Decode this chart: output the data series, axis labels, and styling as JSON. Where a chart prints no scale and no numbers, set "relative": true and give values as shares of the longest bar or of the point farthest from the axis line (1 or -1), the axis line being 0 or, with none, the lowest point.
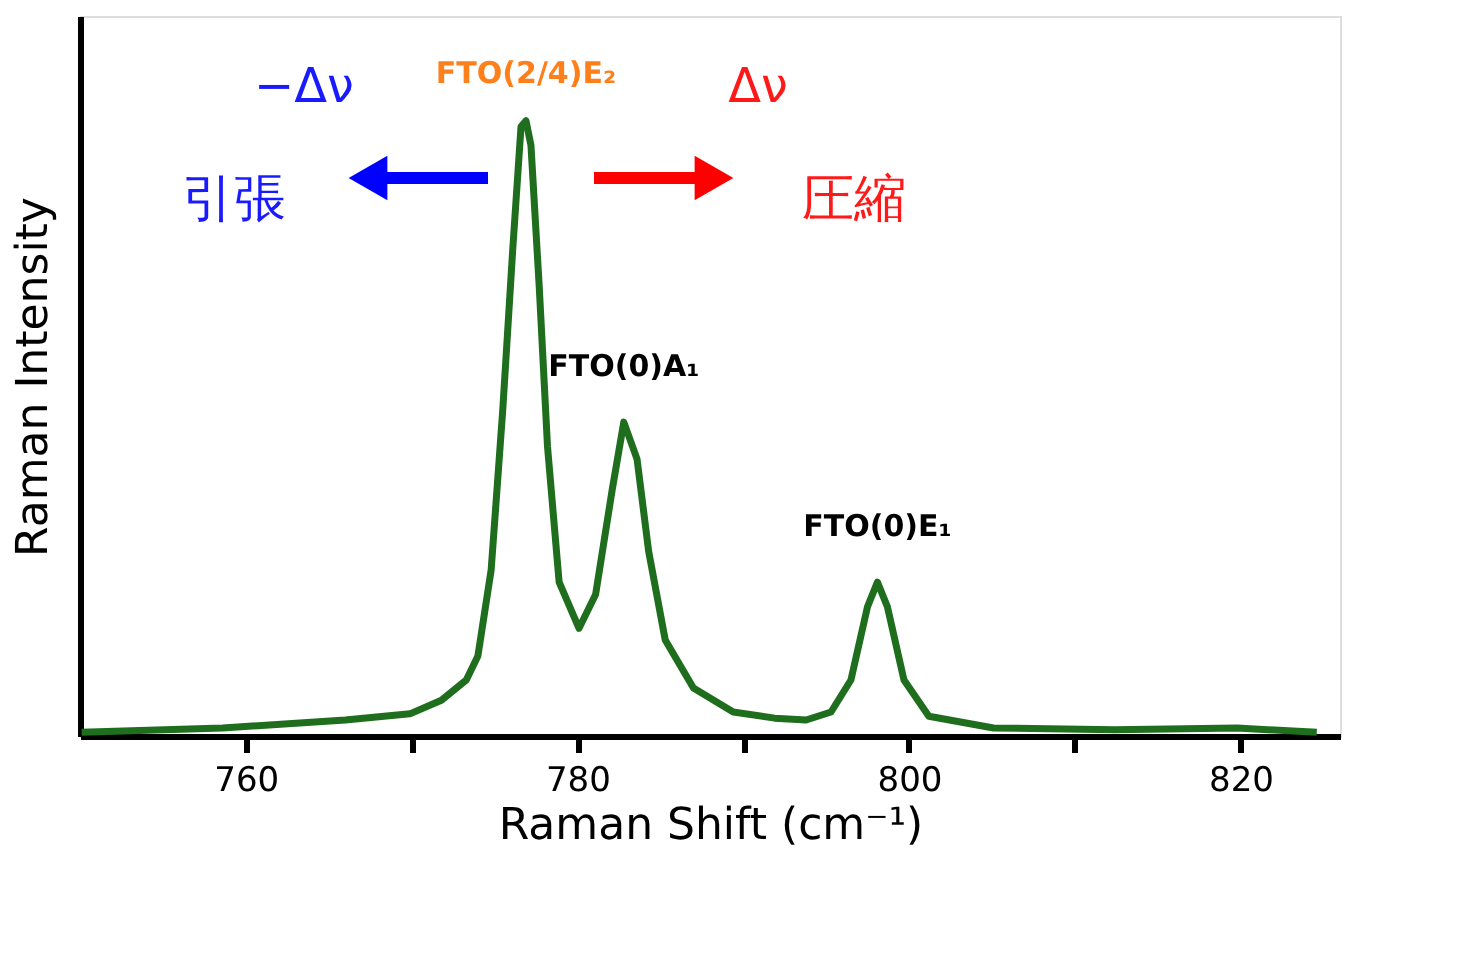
{
  "chart_data": {
    "type": "line",
    "relative": true,
    "xlabel": "Raman Shift (cm⁻¹)",
    "ylabel": "Raman Intensity",
    "xlim": [
      750,
      826
    ],
    "xticks": [
      760,
      {
        "value": 770,
        "label": null
      },
      780,
      {
        "value": 790,
        "label": null
      },
      800,
      {
        "value": 810,
        "label": null
      },
      820
    ],
    "grid": false,
    "marker": "none",
    "line_style": "solid",
    "x": [
      750.1,
      758.6,
      766.0,
      769.9,
      771.8,
      773.3,
      774.0,
      774.8,
      775.5,
      776.1,
      776.6,
      776.9,
      777.2,
      777.7,
      778.2,
      778.9,
      780.1,
      781.1,
      782.1,
      782.8,
      783.6,
      784.3,
      785.3,
      787.0,
      789.4,
      791.9,
      793.8,
      795.3,
      796.5,
      797.5,
      798.1,
      798.7,
      799.7,
      801.2,
      805.1,
      812.4,
      819.8,
      824.6
    ],
    "series": [
      {
        "color": "#1e6e1e",
        "values": [
          0.006,
          0.013,
          0.026,
          0.036,
          0.058,
          0.091,
          0.13,
          0.27,
          0.53,
          0.79,
          0.99,
          1.0,
          0.96,
          0.73,
          0.47,
          0.25,
          0.175,
          0.23,
          0.4,
          0.51,
          0.45,
          0.3,
          0.156,
          0.078,
          0.039,
          0.029,
          0.026,
          0.039,
          0.091,
          0.21,
          0.25,
          0.21,
          0.091,
          0.032,
          0.013,
          0.01,
          0.013,
          0.006
        ]
      }
    ],
    "annotations": [
      "−Δν",
      {
        "text": "FTO(2/4)E₂",
        "x": 776.9,
        "y": 1.0
      },
      "Δν",
      "引張",
      "圧縮",
      {
        "text": "FTO(0)A₁",
        "x": 782.8,
        "y": 0.51
      },
      {
        "text": "FTO(0)E₁",
        "x": 798.1,
        "y": 0.25
      }
    ]
  }
}
